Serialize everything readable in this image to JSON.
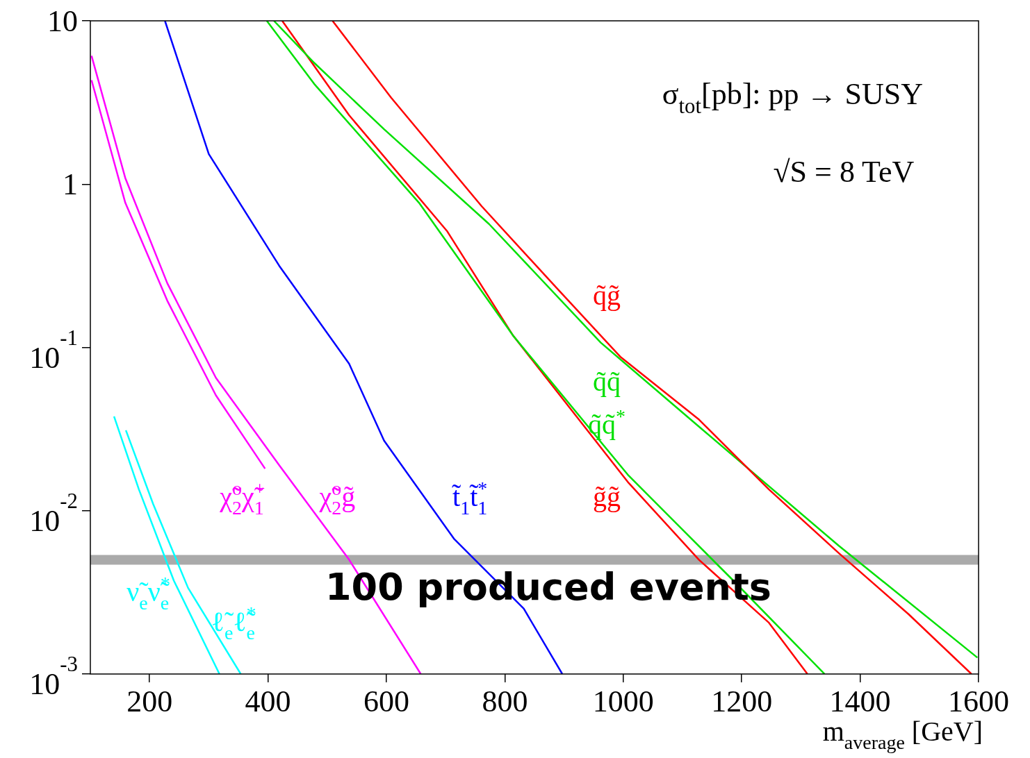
{
  "chart_data": {
    "type": "line",
    "xlabel": "m$_{average}$ [GeV]",
    "xlim": [
      100,
      1600
    ],
    "xticks": [
      200,
      400,
      600,
      800,
      1000,
      1200,
      1400,
      1600
    ],
    "ylim": [
      0.001,
      10
    ],
    "yticks": [
      10,
      1,
      {
        "value": 0.1,
        "label": "10$^{-1}$"
      },
      {
        "value": 0.01,
        "label": "10$^{-2}$"
      },
      {
        "value": 0.001,
        "label": "10$^{-3}$"
      }
    ],
    "log": "y",
    "grid": false,
    "legend": false,
    "marker": "none",
    "line_style": "solid",
    "annotations": [
      "σ$_{tot}$[pb]: pp → SUSY",
      "√S = 8 TeV"
    ],
    "ref_lines": [
      {
        "axis": "y",
        "value": 0.005,
        "label": "100 produced events",
        "color": "#aaaaaa"
      }
    ],
    "series": [
      {
        "name": "q̃g̃",
        "color": "#ff0000",
        "x": [
          509,
          608,
          761,
          891,
          995,
          1128,
          1246,
          1364,
          1482,
          1588
        ],
        "values": [
          10,
          3.38,
          0.731,
          0.224,
          0.0877,
          0.0361,
          0.0135,
          0.0055,
          0.00232,
          0.001
        ]
      },
      {
        "name": "q̃q̃",
        "color": "#00e000",
        "x": [
          410,
          478,
          596,
          773,
          962,
          1128,
          1364,
          1598
        ],
        "values": [
          10,
          5.53,
          2.17,
          0.571,
          0.107,
          0.0327,
          0.0061,
          0.00126
        ]
      },
      {
        "name": "q̃q̃$^{*}$",
        "color": "#00e000",
        "x": [
          398,
          478,
          655,
          814,
          1009,
          1186,
          1340
        ],
        "values": [
          10,
          4.11,
          0.769,
          0.118,
          0.0164,
          0.00373,
          0.001
        ]
      },
      {
        "name": "g̃g̃",
        "color": "#ff0000",
        "x": [
          424,
          537,
          702,
          814,
          1009,
          1128,
          1246,
          1311
        ],
        "values": [
          10,
          2.64,
          0.518,
          0.118,
          0.0148,
          0.005,
          0.00206,
          0.001
        ]
      },
      {
        "name": "t̃$_{1}$t̃$_{1}$$^{*}$",
        "color": "#0000ff",
        "x": [
          226,
          300,
          419,
          537,
          596,
          714,
          832,
          897
        ],
        "values": [
          10,
          1.53,
          0.316,
          0.0794,
          0.0269,
          0.00674,
          0.00251,
          0.001
        ]
      },
      {
        "name": "χ̃$_{2}$$^{o}$χ̃$_{1}$$^{+}$",
        "color": "#ff00ff",
        "x": [
          102,
          159,
          230,
          312,
          395
        ],
        "values": [
          4.33,
          0.769,
          0.193,
          0.0509,
          0.0181
        ]
      },
      {
        "name": "χ̃$_{2}$$^{o}$g̃",
        "color": "#ff00ff",
        "x": [
          102,
          159,
          230,
          312,
          419,
          537,
          658
        ],
        "values": [
          6.11,
          1.09,
          0.247,
          0.0652,
          0.019,
          0.00501,
          0.001
        ]
      },
      {
        "name": "ν̃$_{e}$ν̃$_{e}$$^{*}$",
        "color": "#00ffff",
        "x": [
          140,
          182,
          241,
          318
        ],
        "values": [
          0.0378,
          0.0135,
          0.00373,
          0.001
        ]
      },
      {
        "name": "ℓ̃$_{e}$ℓ̃$_{e}$$^{*}$",
        "color": "#00ffff",
        "x": [
          160,
          206,
          265,
          354
        ],
        "values": [
          0.0311,
          0.011,
          0.00337,
          0.001
        ]
      }
    ]
  }
}
